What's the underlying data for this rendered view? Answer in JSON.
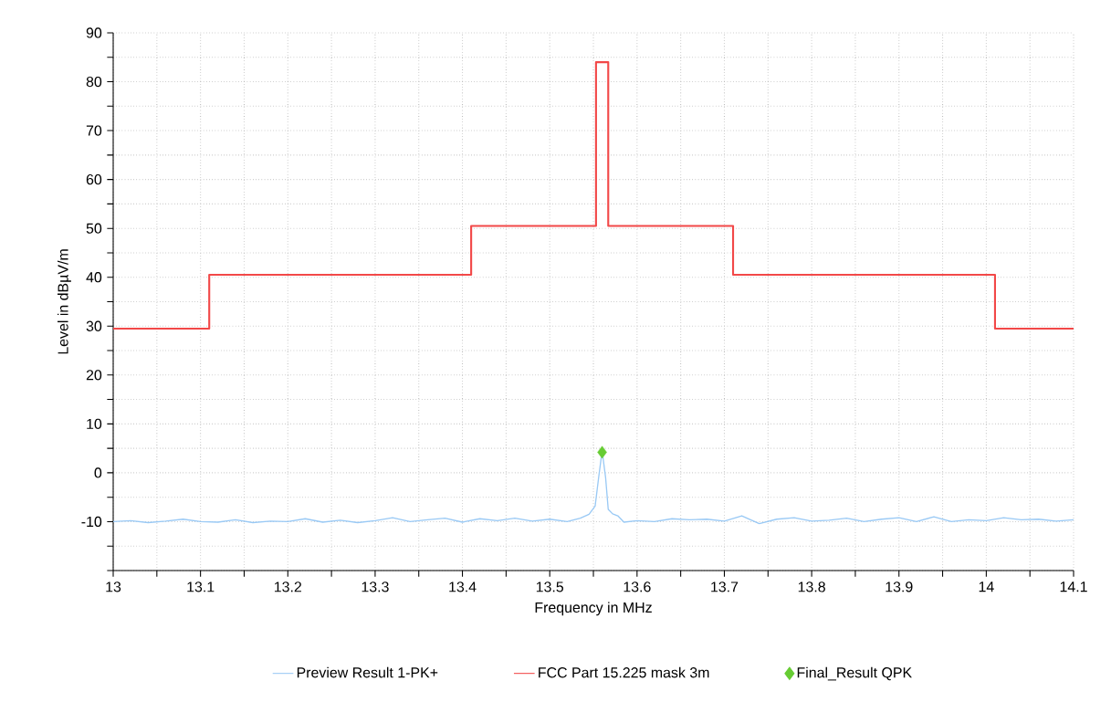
{
  "chart_data": {
    "type": "line",
    "xlabel": "Frequency in MHz",
    "ylabel": "Level in dBµV/m",
    "xlim": [
      13,
      14.1
    ],
    "ylim": [
      -20,
      90
    ],
    "xticks": [
      13,
      {
        "value": 13.05,
        "label": null
      },
      13.1,
      {
        "value": 13.15,
        "label": null
      },
      13.2,
      {
        "value": 13.25,
        "label": null
      },
      13.3,
      {
        "value": 13.35,
        "label": null
      },
      13.4,
      {
        "value": 13.45,
        "label": null
      },
      13.5,
      {
        "value": 13.55,
        "label": null
      },
      13.6,
      {
        "value": 13.65,
        "label": null
      },
      13.7,
      {
        "value": 13.75,
        "label": null
      },
      13.8,
      {
        "value": 13.85,
        "label": null
      },
      13.9,
      {
        "value": 13.95,
        "label": null
      },
      14,
      {
        "value": 14.05,
        "label": null
      },
      14.1
    ],
    "yticks": [
      {
        "value": -20,
        "label": null
      },
      {
        "value": -15,
        "label": null
      },
      -10,
      {
        "value": -5,
        "label": null
      },
      0,
      {
        "value": 5,
        "label": null
      },
      10,
      {
        "value": 15,
        "label": null
      },
      20,
      {
        "value": 25,
        "label": null
      },
      30,
      {
        "value": 35,
        "label": null
      },
      40,
      {
        "value": 45,
        "label": null
      },
      50,
      {
        "value": 55,
        "label": null
      },
      60,
      {
        "value": 65,
        "label": null
      },
      70,
      {
        "value": 75,
        "label": null
      },
      80,
      {
        "value": 85,
        "label": null
      },
      90
    ],
    "grid": true,
    "legend": "bottom",
    "series": [
      {
        "name": "Preview Result 1-PK+",
        "color": "#99c9f5",
        "x": [
          13.0,
          13.02,
          13.04,
          13.06,
          13.08,
          13.1,
          13.12,
          13.14,
          13.16,
          13.18,
          13.2,
          13.22,
          13.24,
          13.26,
          13.28,
          13.3,
          13.32,
          13.34,
          13.36,
          13.38,
          13.4,
          13.42,
          13.44,
          13.46,
          13.48,
          13.5,
          13.52,
          13.535,
          13.545,
          13.552,
          13.556,
          13.56,
          13.564,
          13.567,
          13.572,
          13.578,
          13.585,
          13.6,
          13.62,
          13.64,
          13.66,
          13.68,
          13.7,
          13.72,
          13.74,
          13.76,
          13.78,
          13.8,
          13.82,
          13.84,
          13.86,
          13.88,
          13.9,
          13.92,
          13.94,
          13.96,
          13.98,
          14.0,
          14.02,
          14.04,
          14.06,
          14.08,
          14.1
        ],
        "values": [
          -10,
          -9.8,
          -10.2,
          -9.9,
          -9.5,
          -10,
          -10.1,
          -9.6,
          -10.2,
          -9.9,
          -10,
          -9.4,
          -10.1,
          -9.7,
          -10.2,
          -9.8,
          -9.2,
          -10,
          -9.6,
          -9.3,
          -10.1,
          -9.4,
          -9.8,
          -9.3,
          -9.9,
          -9.5,
          -10,
          -9.3,
          -8.5,
          -6.8,
          -1,
          4.5,
          -1,
          -7.5,
          -8.4,
          -8.8,
          -10.1,
          -9.8,
          -10,
          -9.4,
          -9.6,
          -9.5,
          -9.9,
          -8.8,
          -10.4,
          -9.5,
          -9.2,
          -9.9,
          -9.7,
          -9.3,
          -10,
          -9.5,
          -9.2,
          -10,
          -9,
          -10,
          -9.6,
          -9.8,
          -9.2,
          -9.6,
          -9.5,
          -9.9,
          -9.6
        ]
      },
      {
        "name": "FCC Part 15.225 mask 3m",
        "type": "step",
        "color": "#f24848",
        "x": [
          13.0,
          13.11,
          13.41,
          13.553,
          13.567,
          13.71,
          14.01,
          14.1
        ],
        "values": [
          29.5,
          40.5,
          50.5,
          84,
          50.5,
          40.5,
          29.5,
          29.5
        ]
      },
      {
        "name": "Final_Result QPK",
        "type": "scatter",
        "marker": "diamond",
        "color": "#66cc33",
        "x": [
          13.56
        ],
        "values": [
          4.2
        ]
      }
    ]
  }
}
